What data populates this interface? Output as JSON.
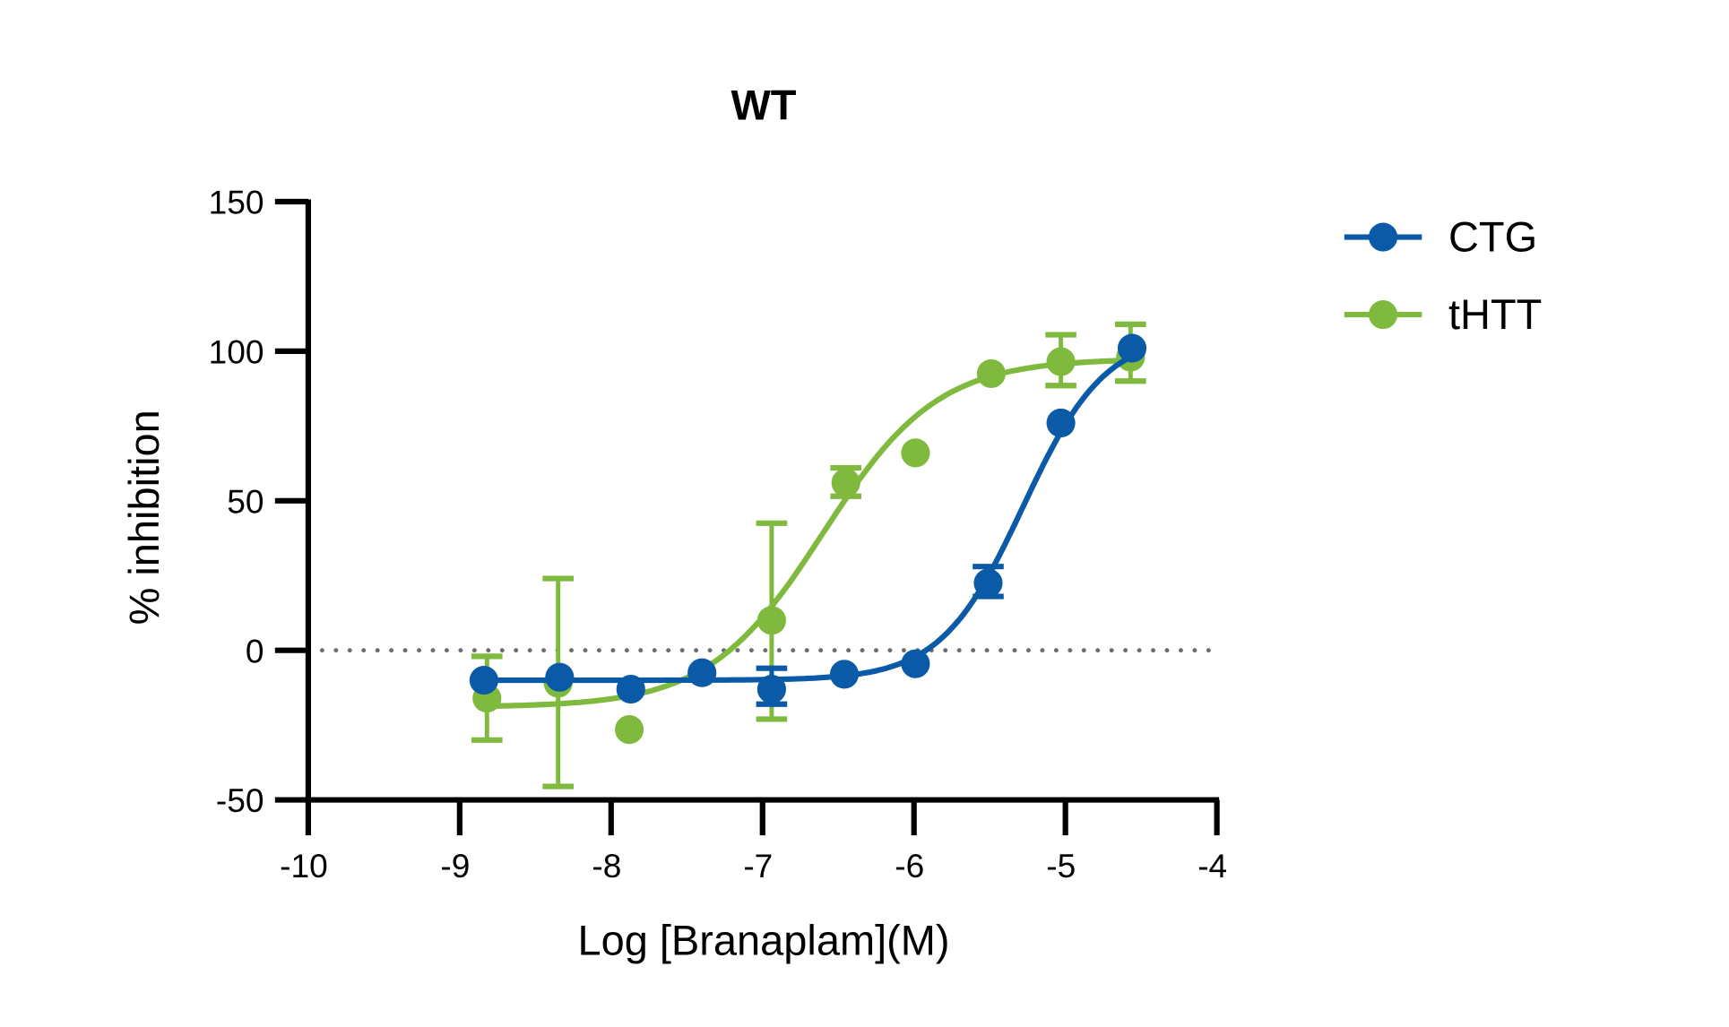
{
  "chart_data": {
    "type": "scatter",
    "title": "WT",
    "xlabel": "Log [Branaplam](M)",
    "ylabel": "% inhibition",
    "xlim": [
      -10,
      -4
    ],
    "ylim": [
      -50,
      150
    ],
    "xticks": [
      -10,
      -9,
      -8,
      -7,
      -6,
      -5,
      -4
    ],
    "yticks": [
      -50,
      0,
      50,
      100,
      150
    ],
    "reference_line": {
      "y": 0,
      "style": "dotted",
      "color": "#6d6d6d"
    },
    "legend_position": "right",
    "series": [
      {
        "name": "CTG",
        "color": "#0a5aa8",
        "x": [
          -8.84,
          -8.34,
          -7.87,
          -7.4,
          -6.94,
          -6.46,
          -5.99,
          -5.51,
          -5.03,
          -4.56
        ],
        "y": [
          -10,
          -9,
          -13,
          -7.5,
          -13,
          -8,
          -4.5,
          22.5,
          76,
          101
        ],
        "err_low": [
          null,
          null,
          null,
          null,
          -18,
          null,
          null,
          18,
          null,
          null
        ],
        "err_high": [
          null,
          null,
          null,
          null,
          -6,
          null,
          null,
          28,
          null,
          null
        ],
        "fit": {
          "bottom": -10,
          "top": 106,
          "logEC50": -5.28,
          "hill": 1.6
        }
      },
      {
        "name": "tHTT",
        "color": "#7fba3e",
        "x": [
          -8.82,
          -8.35,
          -7.88,
          -6.94,
          -6.45,
          -5.99,
          -5.49,
          -5.03,
          -4.57
        ],
        "y": [
          -16,
          -11,
          -26.5,
          10,
          56,
          66,
          92.5,
          96.5,
          98
        ],
        "err_low": [
          -30,
          -45.5,
          null,
          -23,
          51.5,
          null,
          null,
          88.5,
          90
        ],
        "err_high": [
          -2,
          24,
          null,
          42.5,
          61,
          null,
          null,
          105.5,
          109
        ],
        "fit": {
          "bottom": -19,
          "top": 97.5,
          "logEC50": -6.6,
          "hill": 1.15
        }
      }
    ]
  }
}
